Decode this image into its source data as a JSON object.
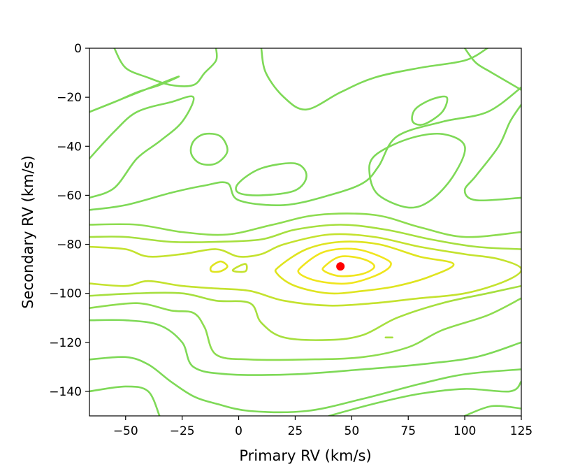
{
  "chart_data": {
    "type": "contour",
    "title": "",
    "xlabel": "Primary RV (km/s)",
    "ylabel": "Secondary RV (km/s)",
    "xlim": [
      -66,
      125
    ],
    "ylim": [
      -150,
      0
    ],
    "y_inverted": true,
    "grid": false,
    "xticks": [
      -50,
      -25,
      0,
      25,
      50,
      75,
      100,
      125
    ],
    "xtick_labels": [
      "−50",
      "−25",
      "0",
      "25",
      "50",
      "75",
      "100",
      "125"
    ],
    "yticks": [
      0,
      -20,
      -40,
      -60,
      -80,
      -100,
      -120,
      -140
    ],
    "ytick_labels": [
      "0",
      "−20",
      "−40",
      "−60",
      "−80",
      "−100",
      "−120",
      "−140"
    ],
    "peak": {
      "x": 45,
      "y": -89,
      "color": "#ff0000"
    },
    "contour_colors": [
      "#7ed957",
      "#8ddc4f",
      "#a6df3e",
      "#c4e22e",
      "#dfe41f",
      "#f0e51c"
    ],
    "contours": [
      {
        "level": 6,
        "points": [
          [
            38,
            -89
          ],
          [
            45,
            -85
          ],
          [
            55,
            -86
          ],
          [
            60,
            -89
          ],
          [
            55,
            -92
          ],
          [
            45,
            -93
          ],
          [
            38,
            -91
          ]
        ]
      },
      {
        "level": 5,
        "points": [
          [
            28,
            -89
          ],
          [
            38,
            -83
          ],
          [
            52,
            -82
          ],
          [
            65,
            -86
          ],
          [
            67,
            -89
          ],
          [
            60,
            -93
          ],
          [
            48,
            -96
          ],
          [
            35,
            -95
          ],
          [
            27,
            -92
          ]
        ]
      },
      {
        "level": 4,
        "points": [
          [
            18,
            -89
          ],
          [
            30,
            -82
          ],
          [
            45,
            -79
          ],
          [
            62,
            -80
          ],
          [
            80,
            -85
          ],
          [
            95,
            -88
          ],
          [
            85,
            -93
          ],
          [
            70,
            -97
          ],
          [
            55,
            -99
          ],
          [
            40,
            -100
          ],
          [
            25,
            -97
          ],
          [
            17,
            -92
          ]
        ]
      },
      {
        "level": 3,
        "points": [
          [
            -66,
            -81
          ],
          [
            -50,
            -82
          ],
          [
            -40,
            -85
          ],
          [
            -25,
            -84
          ],
          [
            -10,
            -82
          ],
          [
            0,
            -85
          ],
          [
            10,
            -84
          ],
          [
            20,
            -80
          ],
          [
            40,
            -76
          ],
          [
            60,
            -77
          ],
          [
            80,
            -81
          ],
          [
            100,
            -84
          ],
          [
            115,
            -86
          ],
          [
            125,
            -90
          ],
          [
            118,
            -95
          ],
          [
            100,
            -100
          ],
          [
            80,
            -102
          ],
          [
            60,
            -104
          ],
          [
            40,
            -105
          ],
          [
            20,
            -103
          ],
          [
            5,
            -99
          ],
          [
            -10,
            -98
          ],
          [
            -25,
            -97
          ],
          [
            -40,
            -95
          ],
          [
            -50,
            -97
          ],
          [
            -66,
            -96
          ]
        ]
      },
      {
        "level": 2,
        "points": [
          [
            -66,
            -77
          ],
          [
            -50,
            -77
          ],
          [
            -30,
            -79
          ],
          [
            -10,
            -79
          ],
          [
            10,
            -78
          ],
          [
            25,
            -74
          ],
          [
            45,
            -72
          ],
          [
            65,
            -74
          ],
          [
            85,
            -78
          ],
          [
            105,
            -81
          ],
          [
            125,
            -82
          ]
        ]
      },
      {
        "level": 2,
        "points": [
          [
            -66,
            -101
          ],
          [
            -45,
            -100
          ],
          [
            -25,
            -100
          ],
          [
            -10,
            -103
          ],
          [
            5,
            -104
          ],
          [
            10,
            -112
          ],
          [
            20,
            -118
          ],
          [
            40,
            -119
          ],
          [
            55,
            -117
          ],
          [
            70,
            -110
          ],
          [
            90,
            -104
          ],
          [
            110,
            -100
          ],
          [
            125,
            -97
          ]
        ]
      },
      {
        "level": 1,
        "points": [
          [
            -66,
            -72
          ],
          [
            -45,
            -72
          ],
          [
            -25,
            -75
          ],
          [
            -5,
            -76
          ],
          [
            15,
            -72
          ],
          [
            35,
            -68
          ],
          [
            60,
            -68
          ],
          [
            80,
            -73
          ],
          [
            100,
            -77
          ],
          [
            125,
            -75
          ]
        ]
      },
      {
        "level": 1,
        "points": [
          [
            -66,
            -106
          ],
          [
            -45,
            -104
          ],
          [
            -30,
            -107
          ],
          [
            -20,
            -108
          ],
          [
            -15,
            -114
          ],
          [
            -10,
            -125
          ],
          [
            5,
            -127
          ],
          [
            30,
            -127
          ],
          [
            55,
            -126
          ],
          [
            75,
            -122
          ],
          [
            90,
            -115
          ],
          [
            110,
            -109
          ],
          [
            125,
            -102
          ]
        ]
      },
      {
        "level": 0,
        "points": [
          [
            -66,
            -66
          ],
          [
            -50,
            -64
          ],
          [
            -30,
            -59
          ],
          [
            -15,
            -56
          ],
          [
            -5,
            -55
          ],
          [
            0,
            -62
          ],
          [
            20,
            -64
          ],
          [
            40,
            -60
          ],
          [
            55,
            -55
          ],
          [
            62,
            -48
          ],
          [
            70,
            -36
          ],
          [
            90,
            -30
          ],
          [
            110,
            -26
          ],
          [
            125,
            -16
          ]
        ]
      },
      {
        "level": 0,
        "points": [
          [
            -66,
            -111
          ],
          [
            -50,
            -111
          ],
          [
            -35,
            -113
          ],
          [
            -25,
            -120
          ],
          [
            -20,
            -130
          ],
          [
            -5,
            -133
          ],
          [
            25,
            -133
          ],
          [
            55,
            -131
          ],
          [
            80,
            -129
          ],
          [
            105,
            -126
          ],
          [
            125,
            -120
          ]
        ]
      },
      {
        "level": 0,
        "points": [
          [
            -66,
            -127
          ],
          [
            -50,
            -126
          ],
          [
            -40,
            -129
          ],
          [
            -30,
            -136
          ],
          [
            -20,
            -142
          ],
          [
            -10,
            -145
          ],
          [
            5,
            -148
          ],
          [
            30,
            -148
          ],
          [
            55,
            -143
          ],
          [
            80,
            -137
          ],
          [
            100,
            -133
          ],
          [
            125,
            -131
          ]
        ]
      },
      {
        "level": 0,
        "points": [
          [
            -66,
            -140
          ],
          [
            -50,
            -138
          ],
          [
            -40,
            -140
          ],
          [
            -35,
            -150
          ]
        ]
      },
      {
        "level": 0,
        "points": [
          [
            40,
            -150
          ],
          [
            60,
            -145
          ],
          [
            80,
            -141
          ],
          [
            100,
            -139
          ],
          [
            120,
            -140
          ],
          [
            125,
            -136
          ]
        ]
      },
      {
        "level": 0,
        "points": [
          [
            100,
            -150
          ],
          [
            112,
            -146
          ],
          [
            125,
            -147
          ]
        ]
      },
      {
        "level": 0,
        "points": [
          [
            -66,
            -45
          ],
          [
            -55,
            -34
          ],
          [
            -45,
            -26
          ],
          [
            -30,
            -22
          ],
          [
            -20,
            -20
          ],
          [
            -25,
            -30
          ],
          [
            -35,
            -38
          ],
          [
            -45,
            -45
          ],
          [
            -55,
            -57
          ],
          [
            -66,
            -61
          ]
        ]
      },
      {
        "level": 0,
        "points": [
          [
            -55,
            0
          ],
          [
            -50,
            -8
          ],
          [
            -40,
            -12
          ],
          [
            -30,
            -15
          ],
          [
            -20,
            -15
          ],
          [
            -15,
            -10
          ],
          [
            -10,
            -5
          ],
          [
            -10,
            0
          ]
        ]
      },
      {
        "level": 0,
        "points": [
          [
            -66,
            -26
          ],
          [
            -55,
            -22
          ],
          [
            -45,
            -18
          ],
          [
            -35,
            -15
          ],
          [
            -28,
            -12
          ]
        ]
      },
      {
        "level": 0,
        "points": [
          [
            10,
            0
          ],
          [
            12,
            -10
          ],
          [
            20,
            -20
          ],
          [
            30,
            -25
          ],
          [
            45,
            -18
          ],
          [
            60,
            -12
          ],
          [
            80,
            -8
          ],
          [
            100,
            -5
          ],
          [
            110,
            0
          ]
        ]
      },
      {
        "level": 0,
        "points": [
          [
            100,
            0
          ],
          [
            105,
            -6
          ],
          [
            112,
            -10
          ],
          [
            125,
            -17
          ]
        ]
      },
      {
        "level": 0,
        "points": [
          [
            125,
            -23
          ],
          [
            120,
            -30
          ],
          [
            115,
            -40
          ],
          [
            105,
            -52
          ],
          [
            100,
            -58
          ],
          [
            105,
            -62
          ],
          [
            125,
            -61
          ]
        ]
      },
      {
        "level": 0,
        "points": [
          [
            -20,
            -38
          ],
          [
            -15,
            -35
          ],
          [
            -8,
            -36
          ],
          [
            -5,
            -42
          ],
          [
            -10,
            -47
          ],
          [
            -17,
            -47
          ],
          [
            -21,
            -43
          ]
        ]
      },
      {
        "level": 0,
        "points": [
          [
            0,
            -55
          ],
          [
            10,
            -49
          ],
          [
            25,
            -47
          ],
          [
            30,
            -52
          ],
          [
            25,
            -58
          ],
          [
            10,
            -60
          ],
          [
            0,
            -59
          ]
        ]
      },
      {
        "level": 0,
        "points": [
          [
            78,
            -25
          ],
          [
            85,
            -21
          ],
          [
            92,
            -20
          ],
          [
            90,
            -26
          ],
          [
            82,
            -31
          ],
          [
            77,
            -30
          ]
        ]
      },
      {
        "level": 0,
        "points": [
          [
            60,
            -44
          ],
          [
            75,
            -37
          ],
          [
            90,
            -35
          ],
          [
            100,
            -40
          ],
          [
            95,
            -52
          ],
          [
            85,
            -62
          ],
          [
            75,
            -65
          ],
          [
            62,
            -60
          ],
          [
            58,
            -52
          ]
        ]
      },
      {
        "level": 4,
        "points": [
          [
            -12,
            -89
          ],
          [
            -8,
            -87
          ],
          [
            -5,
            -89
          ],
          [
            -8,
            -91
          ],
          [
            -12,
            -91
          ]
        ]
      },
      {
        "level": 3,
        "points": [
          [
            -2,
            -90
          ],
          [
            3,
            -88
          ],
          [
            3,
            -91
          ],
          [
            -2,
            -91
          ]
        ]
      },
      {
        "level": 2,
        "points": [
          [
            65,
            -118
          ],
          [
            68,
            -118
          ]
        ]
      }
    ]
  }
}
